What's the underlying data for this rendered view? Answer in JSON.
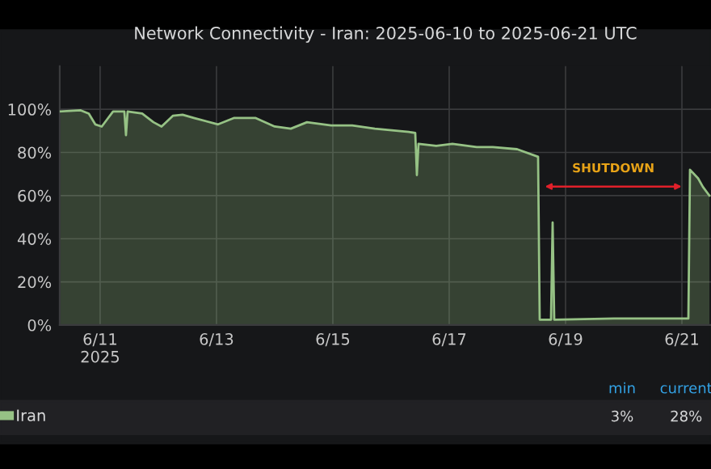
{
  "chart_data": {
    "type": "area",
    "title": "Network Connectivity - Iran: 2025-06-10 to 2025-06-21 UTC",
    "series": [
      {
        "name": "Iran",
        "color": "#96c285",
        "x": [
          "2025-06-10T07:20",
          "2025-06-10T16:00",
          "2025-06-10T19:20",
          "2025-06-10T22:00",
          "2025-06-11T00:40",
          "2025-06-11T02:40",
          "2025-06-11T05:20",
          "2025-06-11T10:00",
          "2025-06-11T10:40",
          "2025-06-11T11:20",
          "2025-06-11T17:20",
          "2025-06-11T22:00",
          "2025-06-12T01:20",
          "2025-06-12T06:00",
          "2025-06-12T10:00",
          "2025-06-12T14:40",
          "2025-06-13T00:40",
          "2025-06-13T07:20",
          "2025-06-13T16:00",
          "2025-06-14T00:00",
          "2025-06-14T06:40",
          "2025-06-14T13:20",
          "2025-06-14T23:20",
          "2025-06-15T08:00",
          "2025-06-15T17:20",
          "2025-06-16T07:20",
          "2025-06-16T10:00",
          "2025-06-16T10:40",
          "2025-06-16T11:20",
          "2025-06-16T18:40",
          "2025-06-17T01:20",
          "2025-06-17T11:20",
          "2025-06-17T18:00",
          "2025-06-18T04:00",
          "2025-06-18T12:40",
          "2025-06-18T13:20",
          "2025-06-18T18:00",
          "2025-06-18T18:40",
          "2025-06-18T19:20",
          "2025-06-19T20:00",
          "2025-06-21T02:40",
          "2025-06-21T03:20",
          "2025-06-21T06:40",
          "2025-06-21T08:40",
          "2025-06-21T11:20"
        ],
        "values": [
          99,
          99.5,
          98,
          93,
          92,
          95,
          99,
          99,
          88,
          99,
          98,
          94,
          92,
          97,
          97.5,
          96,
          93,
          96,
          96,
          92,
          91,
          94,
          92.5,
          92.5,
          91,
          89.5,
          89,
          69.5,
          84,
          83,
          84,
          82.5,
          82.5,
          81.5,
          78,
          2.5,
          2.5,
          47.5,
          2.5,
          3,
          3,
          72,
          68,
          64,
          60
        ]
      }
    ],
    "xlim": [
      "2025-06-10T07:20",
      "2025-06-21T12:00"
    ],
    "xticks": [
      {
        "value": "2025-06-11",
        "label": "6/11\n2025"
      },
      {
        "value": "2025-06-13",
        "label": "6/13"
      },
      {
        "value": "2025-06-15",
        "label": "6/15"
      },
      {
        "value": "2025-06-17",
        "label": "6/17"
      },
      {
        "value": "2025-06-19",
        "label": "6/19"
      },
      {
        "value": "2025-06-21",
        "label": "6/21"
      }
    ],
    "ylim": [
      0,
      120
    ],
    "yticks": [
      {
        "value": 0,
        "label": "0%"
      },
      {
        "value": 20,
        "label": "20%"
      },
      {
        "value": 40,
        "label": "40%"
      },
      {
        "value": 60,
        "label": "60%"
      },
      {
        "value": 80,
        "label": "80%"
      },
      {
        "value": 100,
        "label": "100%"
      }
    ],
    "annotations": [
      "SHUTDOWN",
      "min",
      "current",
      "3%",
      "28%"
    ],
    "grid": true,
    "legend": "bottom left"
  }
}
